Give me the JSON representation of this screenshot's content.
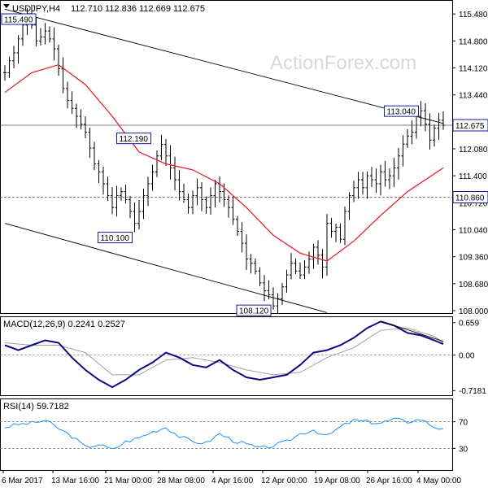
{
  "header": {
    "symbol": "USDJPY,H4",
    "quote": "112.710 112.836 112.669 112.675"
  },
  "watermark": "ActionForex.com",
  "colors": {
    "price": "#000000",
    "ma": "#e8141b",
    "macd_line": "#0a0a84",
    "macd_signal": "#a0a0a0",
    "rsi": "#1e90ff",
    "trendline": "#000000",
    "level_line": "#555555",
    "label_border": "#1a1a99",
    "watermark": "#d8d8d8"
  },
  "chart_data": [
    {
      "name": "price",
      "type": "ohlc",
      "title": "USDJPY,H4",
      "last_bar": {
        "open": 112.71,
        "high": 112.836,
        "low": 112.669,
        "close": 112.675
      },
      "y_ticks": [
        108.0,
        108.68,
        109.36,
        110.04,
        110.72,
        111.4,
        112.08,
        112.76,
        113.44,
        114.12,
        114.8,
        115.48
      ],
      "ylim": [
        108.0,
        115.75
      ],
      "x_ticks": [
        "6 Mar 2017",
        "13 Mar 16:00",
        "21 Mar 00:00",
        "28 Mar 08:00",
        "4 Apr 16:00",
        "12 Apr 00:00",
        "19 Apr 08:00",
        "26 Apr 16:00",
        "4 May 00:00"
      ],
      "close_path": [
        [
          0,
          114.0
        ],
        [
          1,
          114.3
        ],
        [
          2,
          114.5
        ],
        [
          3,
          114.85
        ],
        [
          4,
          115.2
        ],
        [
          5,
          115.49
        ],
        [
          6,
          115.2
        ],
        [
          7,
          114.8
        ],
        [
          8,
          114.9
        ],
        [
          9,
          115.05
        ],
        [
          10,
          114.85
        ],
        [
          11,
          114.6
        ],
        [
          12,
          114.1
        ],
        [
          13,
          113.6
        ],
        [
          14,
          113.3
        ],
        [
          15,
          113.1
        ],
        [
          16,
          112.9
        ],
        [
          17,
          112.7
        ],
        [
          18,
          112.5
        ],
        [
          19,
          112.1
        ],
        [
          20,
          111.7
        ],
        [
          21,
          111.5
        ],
        [
          22,
          111.2
        ],
        [
          23,
          110.9
        ],
        [
          24,
          110.6
        ],
        [
          25,
          110.9
        ],
        [
          26,
          111.0
        ],
        [
          27,
          110.8
        ],
        [
          28,
          110.5
        ],
        [
          29,
          110.2
        ],
        [
          30,
          110.5
        ],
        [
          31,
          110.9
        ],
        [
          32,
          111.2
        ],
        [
          33,
          111.5
        ],
        [
          34,
          111.9
        ],
        [
          35,
          112.19
        ],
        [
          36,
          111.9
        ],
        [
          37,
          111.6
        ],
        [
          38,
          111.3
        ],
        [
          39,
          111.0
        ],
        [
          40,
          110.8
        ],
        [
          41,
          110.6
        ],
        [
          42,
          110.9
        ],
        [
          43,
          111.1
        ],
        [
          44,
          110.8
        ],
        [
          45,
          110.6
        ],
        [
          46,
          110.9
        ],
        [
          47,
          111.2
        ],
        [
          48,
          111.0
        ],
        [
          49,
          110.8
        ],
        [
          50,
          110.6
        ],
        [
          51,
          110.3
        ],
        [
          52,
          110.0
        ],
        [
          53,
          109.7
        ],
        [
          54,
          109.3
        ],
        [
          55,
          109.2
        ],
        [
          56,
          109.0
        ],
        [
          57,
          108.7
        ],
        [
          58,
          108.5
        ],
        [
          59,
          108.4
        ],
        [
          60,
          108.12
        ],
        [
          61,
          108.3
        ],
        [
          62,
          108.6
        ],
        [
          63,
          108.9
        ],
        [
          64,
          109.2
        ],
        [
          65,
          109.0
        ],
        [
          66,
          108.9
        ],
        [
          67,
          109.1
        ],
        [
          68,
          109.3
        ],
        [
          69,
          109.6
        ],
        [
          70,
          109.4
        ],
        [
          71,
          109.1
        ],
        [
          72,
          110.2
        ],
        [
          73,
          110.0
        ],
        [
          74,
          110.1
        ],
        [
          75,
          109.8
        ],
        [
          76,
          110.5
        ],
        [
          77,
          110.9
        ],
        [
          78,
          111.1
        ],
        [
          79,
          111.3
        ],
        [
          80,
          111.1
        ],
        [
          81,
          111.4
        ],
        [
          82,
          111.3
        ],
        [
          83,
          111.2
        ],
        [
          84,
          111.5
        ],
        [
          85,
          111.3
        ],
        [
          86,
          111.4
        ],
        [
          87,
          111.6
        ],
        [
          88,
          111.9
        ],
        [
          89,
          112.2
        ],
        [
          90,
          112.4
        ],
        [
          91,
          112.5
        ],
        [
          92,
          112.9
        ],
        [
          93,
          113.04
        ],
        [
          94,
          112.7
        ],
        [
          95,
          112.3
        ],
        [
          96,
          112.6
        ],
        [
          97,
          112.8
        ],
        [
          98,
          112.675
        ]
      ],
      "moving_average": [
        [
          0,
          113.5
        ],
        [
          6,
          114.0
        ],
        [
          12,
          114.2
        ],
        [
          18,
          113.7
        ],
        [
          24,
          112.9
        ],
        [
          30,
          112.0
        ],
        [
          36,
          111.7
        ],
        [
          42,
          111.55
        ],
        [
          48,
          111.2
        ],
        [
          54,
          110.6
        ],
        [
          60,
          109.9
        ],
        [
          66,
          109.45
        ],
        [
          72,
          109.25
        ],
        [
          78,
          109.75
        ],
        [
          84,
          110.4
        ],
        [
          90,
          111.0
        ],
        [
          96,
          111.45
        ],
        [
          98,
          111.6
        ]
      ],
      "labels": [
        {
          "text": "115.490",
          "x": 5,
          "y": 115.49
        },
        {
          "text": "112.190",
          "x": 35,
          "y": 112.19
        },
        {
          "text": "110.100",
          "x": 29,
          "y": 110.1
        },
        {
          "text": "108.120",
          "x": 60,
          "y": 108.12
        },
        {
          "text": "113.040",
          "x": 93,
          "y": 113.04
        }
      ],
      "horizontal_lines": [
        {
          "value": 112.675,
          "label": "112.675",
          "style": "solid"
        },
        {
          "value": 110.86,
          "label": "110.860",
          "style": "dashed"
        }
      ],
      "trendlines": [
        {
          "from": [
            0,
            115.6
          ],
          "to": [
            98,
            112.72
          ]
        },
        {
          "from": [
            0,
            110.2
          ],
          "to": [
            72,
            107.95
          ]
        }
      ]
    },
    {
      "name": "macd",
      "type": "line",
      "title": "MACD(12,26,9) 0.2241 0.2527",
      "y_ticks": [
        0.659,
        0.0,
        -0.7181
      ],
      "y_tick_labels": [
        "0.659",
        "0.00",
        "-0.7181"
      ],
      "ylim": [
        -0.78,
        0.72
      ],
      "series": [
        {
          "name": "MACD",
          "values": [
            [
              0,
              0.2
            ],
            [
              3,
              0.1
            ],
            [
              6,
              0.2
            ],
            [
              9,
              0.3
            ],
            [
              12,
              0.25
            ],
            [
              15,
              -0.05
            ],
            [
              18,
              -0.3
            ],
            [
              21,
              -0.5
            ],
            [
              24,
              -0.65
            ],
            [
              27,
              -0.5
            ],
            [
              30,
              -0.3
            ],
            [
              33,
              -0.15
            ],
            [
              36,
              0.05
            ],
            [
              39,
              -0.05
            ],
            [
              42,
              -0.2
            ],
            [
              45,
              -0.25
            ],
            [
              48,
              -0.1
            ],
            [
              51,
              -0.3
            ],
            [
              54,
              -0.45
            ],
            [
              57,
              -0.5
            ],
            [
              60,
              -0.45
            ],
            [
              63,
              -0.4
            ],
            [
              66,
              -0.2
            ],
            [
              69,
              0.05
            ],
            [
              72,
              0.1
            ],
            [
              75,
              0.2
            ],
            [
              78,
              0.35
            ],
            [
              81,
              0.55
            ],
            [
              84,
              0.68
            ],
            [
              87,
              0.6
            ],
            [
              90,
              0.45
            ],
            [
              93,
              0.4
            ],
            [
              96,
              0.3
            ],
            [
              98,
              0.2241
            ]
          ]
        },
        {
          "name": "Signal",
          "values": [
            [
              0,
              0.25
            ],
            [
              6,
              0.2
            ],
            [
              12,
              0.2
            ],
            [
              18,
              0.05
            ],
            [
              24,
              -0.4
            ],
            [
              30,
              -0.4
            ],
            [
              36,
              -0.1
            ],
            [
              42,
              -0.05
            ],
            [
              48,
              -0.15
            ],
            [
              54,
              -0.3
            ],
            [
              60,
              -0.4
            ],
            [
              66,
              -0.35
            ],
            [
              72,
              -0.05
            ],
            [
              78,
              0.15
            ],
            [
              84,
              0.5
            ],
            [
              90,
              0.55
            ],
            [
              96,
              0.38
            ],
            [
              98,
              0.2527
            ]
          ]
        }
      ],
      "trendline": {
        "from": [
          84,
          0.69
        ],
        "to": [
          98,
          0.28
        ]
      }
    },
    {
      "name": "rsi",
      "type": "line",
      "title": "RSI(14) 59.7182",
      "y_ticks": [
        70,
        30
      ],
      "ylim": [
        0,
        100
      ],
      "series": [
        {
          "name": "RSI",
          "values": [
            [
              0,
              62
            ],
            [
              3,
              66
            ],
            [
              6,
              68
            ],
            [
              9,
              72
            ],
            [
              12,
              60
            ],
            [
              15,
              48
            ],
            [
              18,
              32
            ],
            [
              21,
              36
            ],
            [
              24,
              28
            ],
            [
              27,
              40
            ],
            [
              30,
              46
            ],
            [
              33,
              55
            ],
            [
              36,
              62
            ],
            [
              39,
              48
            ],
            [
              42,
              40
            ],
            [
              45,
              38
            ],
            [
              48,
              52
            ],
            [
              51,
              42
            ],
            [
              54,
              36
            ],
            [
              57,
              30
            ],
            [
              60,
              34
            ],
            [
              63,
              40
            ],
            [
              66,
              52
            ],
            [
              69,
              58
            ],
            [
              72,
              48
            ],
            [
              75,
              62
            ],
            [
              78,
              72
            ],
            [
              81,
              70
            ],
            [
              84,
              68
            ],
            [
              87,
              74
            ],
            [
              90,
              70
            ],
            [
              93,
              74
            ],
            [
              96,
              62
            ],
            [
              98,
              59.7
            ]
          ]
        }
      ]
    }
  ]
}
